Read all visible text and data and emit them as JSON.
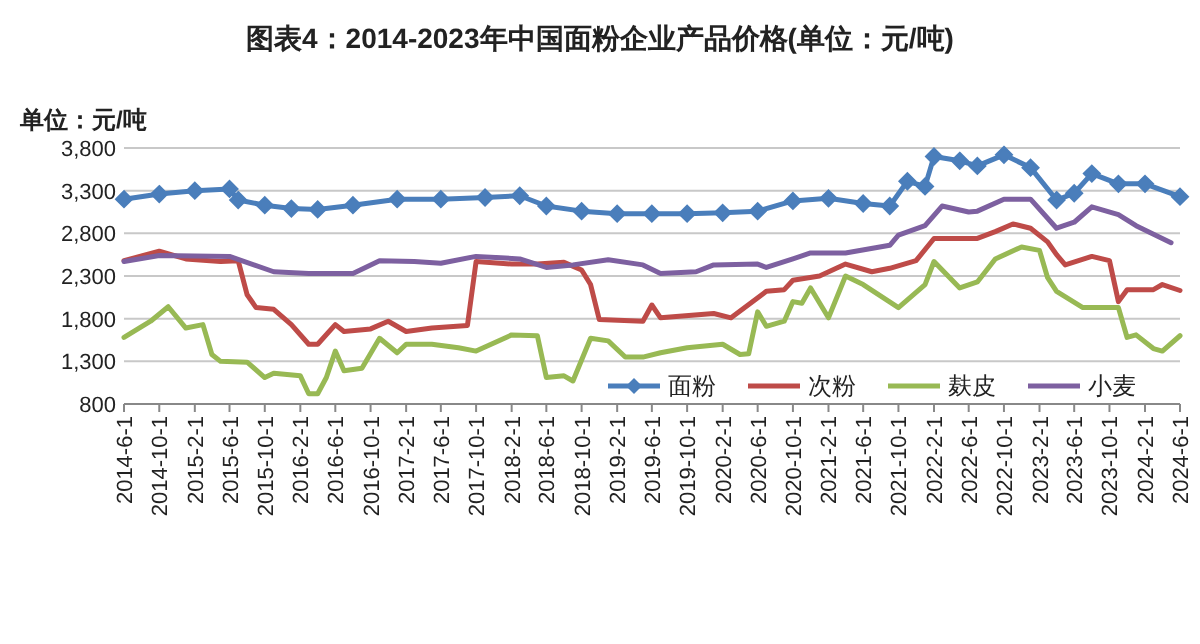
{
  "chart_data": {
    "type": "line",
    "title": "图表4：2014-2023年中国面粉企业产品价格(单位：元/吨)",
    "ylabel": "单位：元/吨",
    "xlim": [
      "2014-06",
      "2024-06"
    ],
    "ylim": [
      800,
      3800
    ],
    "yticks": [
      {
        "value": 800,
        "label": "800"
      },
      {
        "value": 1300,
        "label": "1,300"
      },
      {
        "value": 1800,
        "label": "1,800"
      },
      {
        "value": 2300,
        "label": "2,300"
      },
      {
        "value": 2800,
        "label": "2,800"
      },
      {
        "value": 3300,
        "label": "3,300"
      },
      {
        "value": 3800,
        "label": "3,800"
      }
    ],
    "xticks": [
      {
        "value": "2014-06",
        "label": "2014-6-1"
      },
      {
        "value": "2014-10",
        "label": "2014-10-1"
      },
      {
        "value": "2015-02",
        "label": "2015-2-1"
      },
      {
        "value": "2015-06",
        "label": "2015-6-1"
      },
      {
        "value": "2015-10",
        "label": "2015-10-1"
      },
      {
        "value": "2016-02",
        "label": "2016-2-1"
      },
      {
        "value": "2016-06",
        "label": "2016-6-1"
      },
      {
        "value": "2016-10",
        "label": "2016-10-1"
      },
      {
        "value": "2017-02",
        "label": "2017-2-1"
      },
      {
        "value": "2017-06",
        "label": "2017-6-1"
      },
      {
        "value": "2017-10",
        "label": "2017-10-1"
      },
      {
        "value": "2018-02",
        "label": "2018-2-1"
      },
      {
        "value": "2018-06",
        "label": "2018-6-1"
      },
      {
        "value": "2018-10",
        "label": "2018-10-1"
      },
      {
        "value": "2019-02",
        "label": "2019-2-1"
      },
      {
        "value": "2019-06",
        "label": "2019-6-1"
      },
      {
        "value": "2019-10",
        "label": "2019-10-1"
      },
      {
        "value": "2020-02",
        "label": "2020-2-1"
      },
      {
        "value": "2020-06",
        "label": "2020-6-1"
      },
      {
        "value": "2020-10",
        "label": "2020-10-1"
      },
      {
        "value": "2021-02",
        "label": "2021-2-1"
      },
      {
        "value": "2021-06",
        "label": "2021-6-1"
      },
      {
        "value": "2021-10",
        "label": "2021-10-1"
      },
      {
        "value": "2022-02",
        "label": "2022-2-1"
      },
      {
        "value": "2022-06",
        "label": "2022-6-1"
      },
      {
        "value": "2022-10",
        "label": "2022-10-1"
      },
      {
        "value": "2023-02",
        "label": "2023-2-1"
      },
      {
        "value": "2023-06",
        "label": "2023-6-1"
      },
      {
        "value": "2023-10",
        "label": "2023-10-1"
      },
      {
        "value": "2024-02",
        "label": "2024-2-1"
      },
      {
        "value": "2024-06",
        "label": "2024-6-1"
      }
    ],
    "grid": "y",
    "legend": "bottom",
    "series": [
      {
        "name": "面粉",
        "color": "#4a7ebb",
        "marker": "diamond",
        "x": [
          "2014-06",
          "2014-10",
          "2015-02",
          "2015-06",
          "2015-07",
          "2015-10",
          "2016-01",
          "2016-04",
          "2016-08",
          "2017-01",
          "2017-06",
          "2017-11",
          "2018-03",
          "2018-06",
          "2018-10",
          "2019-02",
          "2019-06",
          "2019-10",
          "2020-02",
          "2020-06",
          "2020-10",
          "2021-02",
          "2021-06",
          "2021-09",
          "2021-11",
          "2022-01",
          "2022-02",
          "2022-05",
          "2022-07",
          "2022-10",
          "2023-01",
          "2023-04",
          "2023-06",
          "2023-08",
          "2023-11",
          "2024-02",
          "2024-06"
        ],
        "values": [
          3200,
          3260,
          3300,
          3320,
          3190,
          3130,
          3090,
          3080,
          3130,
          3200,
          3200,
          3220,
          3240,
          3120,
          3060,
          3030,
          3030,
          3030,
          3040,
          3060,
          3180,
          3210,
          3150,
          3120,
          3410,
          3350,
          3700,
          3650,
          3590,
          3720,
          3570,
          3190,
          3270,
          3500,
          3380,
          3380,
          3230
        ]
      },
      {
        "name": "次粉",
        "color": "#be4b48",
        "marker": "none",
        "x": [
          "2014-06",
          "2014-10",
          "2015-01",
          "2015-05",
          "2015-07",
          "2015-08",
          "2015-09",
          "2015-11",
          "2016-01",
          "2016-03",
          "2016-04",
          "2016-06",
          "2016-07",
          "2016-10",
          "2016-12",
          "2017-02",
          "2017-05",
          "2017-09",
          "2017-10",
          "2018-02",
          "2018-05",
          "2018-08",
          "2018-10",
          "2018-11",
          "2018-12",
          "2019-05",
          "2019-06",
          "2019-07",
          "2020-01",
          "2020-03",
          "2020-07",
          "2020-09",
          "2020-10",
          "2021-01",
          "2021-04",
          "2021-07",
          "2021-09",
          "2021-12",
          "2022-02",
          "2022-07",
          "2022-09",
          "2022-11",
          "2023-01",
          "2023-03",
          "2023-04",
          "2023-05",
          "2023-08",
          "2023-10",
          "2023-11",
          "2023-12",
          "2024-03",
          "2024-04",
          "2024-06"
        ],
        "values": [
          2480,
          2590,
          2500,
          2470,
          2480,
          2080,
          1930,
          1910,
          1730,
          1500,
          1500,
          1730,
          1650,
          1680,
          1770,
          1650,
          1690,
          1720,
          2470,
          2440,
          2440,
          2460,
          2370,
          2200,
          1790,
          1770,
          1960,
          1810,
          1860,
          1810,
          2120,
          2140,
          2250,
          2300,
          2440,
          2350,
          2390,
          2480,
          2740,
          2740,
          2820,
          2910,
          2860,
          2700,
          2550,
          2430,
          2530,
          2480,
          2000,
          2140,
          2140,
          2200,
          2130
        ]
      },
      {
        "name": "麸皮",
        "color": "#98b954",
        "marker": "none",
        "x": [
          "2014-06",
          "2014-09",
          "2014-11",
          "2015-01",
          "2015-03",
          "2015-04",
          "2015-05",
          "2015-08",
          "2015-10",
          "2015-11",
          "2016-02",
          "2016-03",
          "2016-04",
          "2016-05",
          "2016-06",
          "2016-07",
          "2016-09",
          "2016-11",
          "2017-01",
          "2017-02",
          "2017-05",
          "2017-08",
          "2017-10",
          "2018-02",
          "2018-05",
          "2018-06",
          "2018-08",
          "2018-09",
          "2018-11",
          "2019-01",
          "2019-03",
          "2019-05",
          "2019-07",
          "2019-10",
          "2020-02",
          "2020-04",
          "2020-05",
          "2020-06",
          "2020-07",
          "2020-09",
          "2020-10",
          "2020-11",
          "2020-12",
          "2021-02",
          "2021-04",
          "2021-06",
          "2021-10",
          "2022-01",
          "2022-02",
          "2022-05",
          "2022-07",
          "2022-09",
          "2022-12",
          "2023-02",
          "2023-03",
          "2023-04",
          "2023-07",
          "2023-11",
          "2023-12",
          "2024-01",
          "2024-03",
          "2024-04",
          "2024-06"
        ],
        "values": [
          1580,
          1770,
          1940,
          1690,
          1730,
          1380,
          1300,
          1290,
          1110,
          1160,
          1130,
          920,
          920,
          1110,
          1420,
          1190,
          1220,
          1570,
          1400,
          1500,
          1500,
          1460,
          1420,
          1610,
          1600,
          1110,
          1130,
          1070,
          1570,
          1540,
          1350,
          1350,
          1400,
          1460,
          1500,
          1380,
          1390,
          1880,
          1710,
          1770,
          2000,
          1980,
          2160,
          1810,
          2300,
          2200,
          1930,
          2200,
          2470,
          2160,
          2230,
          2500,
          2640,
          2600,
          2280,
          2120,
          1930,
          1930,
          1580,
          1610,
          1450,
          1420,
          1600
        ]
      },
      {
        "name": "小麦",
        "color": "#7d60a0",
        "marker": "none",
        "x": [
          "2014-06",
          "2014-10",
          "2015-06",
          "2015-11",
          "2016-03",
          "2016-08",
          "2016-11",
          "2017-03",
          "2017-06",
          "2017-10",
          "2018-03",
          "2018-06",
          "2018-09",
          "2019-01",
          "2019-05",
          "2019-07",
          "2019-11",
          "2020-01",
          "2020-06",
          "2020-07",
          "2020-10",
          "2020-12",
          "2021-04",
          "2021-09",
          "2021-10",
          "2022-01",
          "2022-03",
          "2022-06",
          "2022-07",
          "2022-10",
          "2023-01",
          "2023-04",
          "2023-06",
          "2023-08",
          "2023-11",
          "2024-01",
          "2024-05"
        ],
        "values": [
          2470,
          2540,
          2530,
          2350,
          2330,
          2330,
          2480,
          2470,
          2450,
          2530,
          2500,
          2400,
          2430,
          2490,
          2430,
          2330,
          2350,
          2430,
          2440,
          2400,
          2500,
          2570,
          2570,
          2660,
          2780,
          2890,
          3120,
          3050,
          3060,
          3200,
          3200,
          2860,
          2930,
          3110,
          3020,
          2890,
          2690
        ]
      }
    ]
  }
}
